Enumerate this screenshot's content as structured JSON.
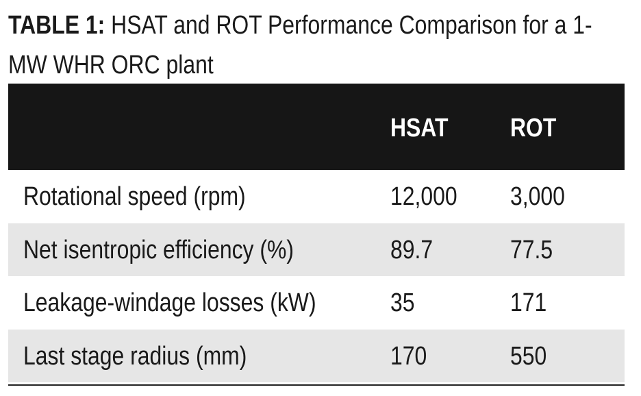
{
  "header": {
    "label": "TABLE 1:",
    "title": "HSAT and ROT Performance Comparison for a 1-MW WHR ORC plant"
  },
  "table": {
    "columns": [
      "HSAT",
      "ROT"
    ],
    "rows": [
      [
        "Rotational speed (rpm)",
        "12,000",
        "3,000"
      ],
      [
        "Net isentropic efficiency (%)",
        "89.7",
        "77.5"
      ],
      [
        "Leakage-windage losses (kW)",
        "35",
        "171"
      ],
      [
        "Last stage radius (mm)",
        "170",
        "550"
      ]
    ]
  }
}
